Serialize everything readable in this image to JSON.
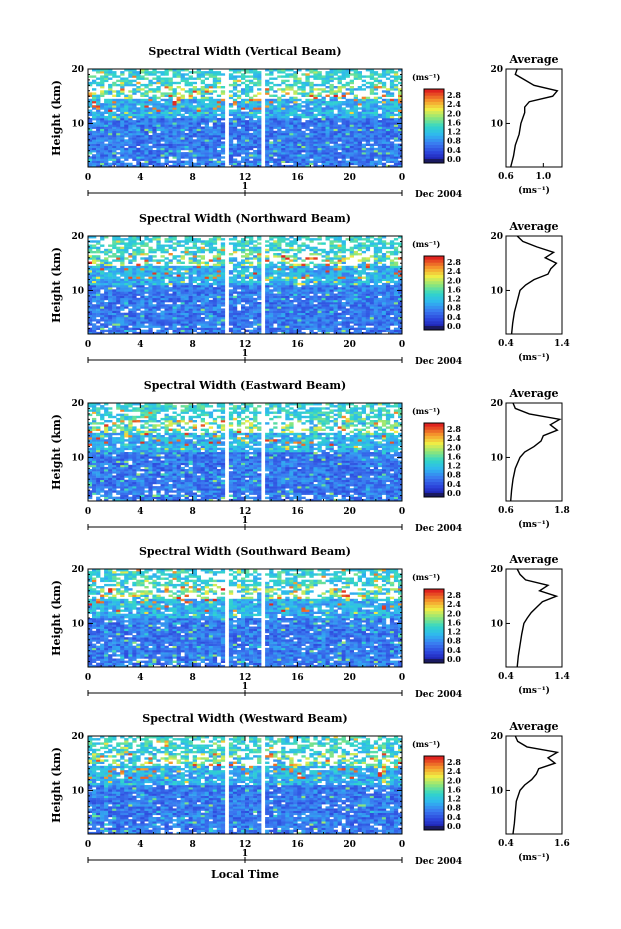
{
  "figure": {
    "ylabel": "Height (km)",
    "xlabel": "Local Time",
    "date_label": "Dec 2004",
    "day_label": "1",
    "cbar_unit": "(ms⁻¹)",
    "avg_title": "Average",
    "avg_xlabel": "(ms⁻¹)",
    "x_ticks": [
      "0",
      "4",
      "8",
      "12",
      "16",
      "20",
      "0"
    ],
    "y_ticks": [
      "20",
      "10"
    ],
    "colorbar_ticks": [
      "2.8",
      "2.4",
      "2.0",
      "1.6",
      "1.2",
      "0.8",
      "0.4",
      "0.0"
    ]
  },
  "chart_data": [
    {
      "type": "heatmap",
      "title": "Spectral Width (Vertical Beam)",
      "xlabel": "Local Time",
      "ylabel": "Height (km)",
      "xlim": [
        0,
        24
      ],
      "ylim": [
        2,
        20
      ],
      "colorbar": {
        "unit": "ms⁻¹",
        "range": [
          0.0,
          2.8
        ]
      },
      "gaps_hours": [
        [
          10.4,
          10.8
        ],
        [
          13.1,
          13.5
        ]
      ],
      "average_profile": {
        "title": "Average",
        "xlabel": "(ms⁻¹)",
        "xlim": [
          0.6,
          1.2
        ],
        "x_ticks": [
          "0.6",
          "1.0"
        ],
        "height_km": [
          2,
          4,
          6,
          8,
          10,
          11,
          12,
          13,
          14,
          15,
          16,
          17,
          18,
          19,
          20
        ],
        "width": [
          0.65,
          0.68,
          0.7,
          0.74,
          0.76,
          0.78,
          0.8,
          0.8,
          0.85,
          1.1,
          1.15,
          0.9,
          0.8,
          0.7,
          0.72
        ]
      }
    },
    {
      "type": "heatmap",
      "title": "Spectral Width (Northward Beam)",
      "xlabel": "Local Time",
      "ylabel": "Height (km)",
      "xlim": [
        0,
        24
      ],
      "ylim": [
        2,
        20
      ],
      "colorbar": {
        "unit": "ms⁻¹",
        "range": [
          0.0,
          2.8
        ]
      },
      "gaps_hours": [
        [
          10.4,
          10.8
        ],
        [
          13.1,
          13.5
        ]
      ],
      "average_profile": {
        "title": "Average",
        "xlabel": "(ms⁻¹)",
        "xlim": [
          0.4,
          1.4
        ],
        "x_ticks": [
          "0.4",
          "1.4"
        ],
        "height_km": [
          2,
          4,
          6,
          8,
          10,
          11,
          12,
          13,
          14,
          15,
          16,
          17,
          18,
          19,
          20
        ],
        "width": [
          0.5,
          0.52,
          0.55,
          0.6,
          0.65,
          0.75,
          0.9,
          1.15,
          1.2,
          1.3,
          1.1,
          1.25,
          0.95,
          0.7,
          0.6
        ]
      }
    },
    {
      "type": "heatmap",
      "title": "Spectral Width (Eastward Beam)",
      "xlabel": "Local Time",
      "ylabel": "Height (km)",
      "xlim": [
        0,
        24
      ],
      "ylim": [
        2,
        20
      ],
      "colorbar": {
        "unit": "ms⁻¹",
        "range": [
          0.0,
          2.8
        ]
      },
      "gaps_hours": [
        [
          10.4,
          10.8
        ],
        [
          13.1,
          13.5
        ]
      ],
      "average_profile": {
        "title": "Average",
        "xlabel": "(ms⁻¹)",
        "xlim": [
          0.6,
          1.8
        ],
        "x_ticks": [
          "0.6",
          "1.8"
        ],
        "height_km": [
          2,
          4,
          6,
          8,
          10,
          11,
          12,
          13,
          14,
          15,
          16,
          17,
          18,
          19,
          20
        ],
        "width": [
          0.7,
          0.72,
          0.75,
          0.8,
          0.9,
          1.0,
          1.2,
          1.35,
          1.4,
          1.7,
          1.55,
          1.75,
          1.1,
          0.8,
          0.75
        ]
      }
    },
    {
      "type": "heatmap",
      "title": "Spectral Width (Southward Beam)",
      "xlabel": "Local Time",
      "ylabel": "Height (km)",
      "xlim": [
        0,
        24
      ],
      "ylim": [
        2,
        20
      ],
      "colorbar": {
        "unit": "ms⁻¹",
        "range": [
          0.0,
          2.8
        ]
      },
      "gaps_hours": [
        [
          10.4,
          10.8
        ],
        [
          13.1,
          13.5
        ]
      ],
      "average_profile": {
        "title": "Average",
        "xlabel": "(ms⁻¹)",
        "xlim": [
          0.4,
          1.4
        ],
        "x_ticks": [
          "0.4",
          "1.4"
        ],
        "height_km": [
          2,
          4,
          6,
          8,
          10,
          11,
          12,
          13,
          14,
          15,
          16,
          17,
          18,
          19,
          20
        ],
        "width": [
          0.6,
          0.62,
          0.65,
          0.68,
          0.72,
          0.78,
          0.85,
          0.95,
          1.05,
          1.3,
          1.0,
          1.15,
          0.75,
          0.65,
          0.6
        ]
      }
    },
    {
      "type": "heatmap",
      "title": "Spectral Width (Westward Beam)",
      "xlabel": "Local Time",
      "ylabel": "Height (km)",
      "xlim": [
        0,
        24
      ],
      "ylim": [
        2,
        20
      ],
      "colorbar": {
        "unit": "ms⁻¹",
        "range": [
          0.0,
          2.8
        ]
      },
      "gaps_hours": [
        [
          10.4,
          10.8
        ],
        [
          13.1,
          13.5
        ]
      ],
      "average_profile": {
        "title": "Average",
        "xlabel": "(ms⁻¹)",
        "xlim": [
          0.4,
          1.6
        ],
        "x_ticks": [
          "0.4",
          "1.6"
        ],
        "height_km": [
          2,
          4,
          6,
          8,
          10,
          11,
          12,
          13,
          14,
          15,
          16,
          17,
          18,
          19,
          20
        ],
        "width": [
          0.55,
          0.58,
          0.6,
          0.62,
          0.7,
          0.8,
          0.95,
          1.05,
          1.1,
          1.45,
          1.3,
          1.5,
          0.85,
          0.65,
          0.6
        ]
      }
    }
  ]
}
